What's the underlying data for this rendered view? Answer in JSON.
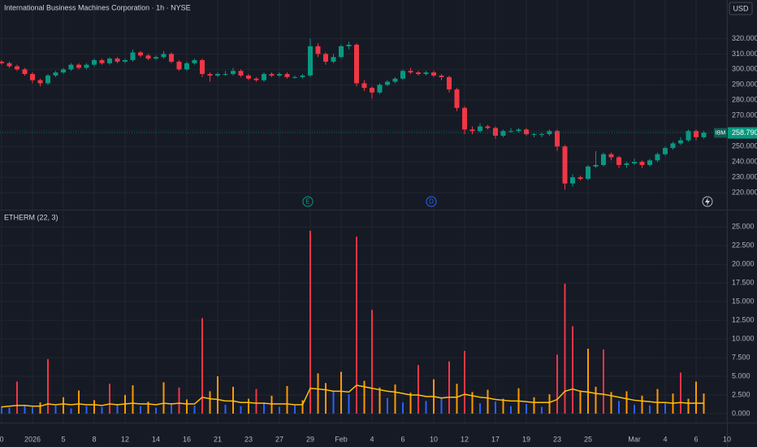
{
  "chart_data": {
    "type": "candlestick",
    "title": "International Business Machines Corporation · 1h · NYSE",
    "currency": "USD",
    "symbol_label": "IBM",
    "last_price": 258.79,
    "last_price_label": "258.790",
    "events": [
      "E",
      "D"
    ],
    "up_color": "#089981",
    "down_color": "#f23645",
    "grid": true,
    "xlim": [
      0,
      94
    ],
    "xticks": [
      {
        "value": 0,
        "label": "0"
      },
      {
        "value": 4,
        "label": "2026"
      },
      {
        "value": 8,
        "label": "5"
      },
      {
        "value": 12,
        "label": "8"
      },
      {
        "value": 16,
        "label": "12"
      },
      {
        "value": 20,
        "label": "14"
      },
      {
        "value": 24,
        "label": "16"
      },
      {
        "value": 28,
        "label": "21"
      },
      {
        "value": 32,
        "label": "23"
      },
      {
        "value": 36,
        "label": "27"
      },
      {
        "value": 40,
        "label": "29"
      },
      {
        "value": 44,
        "label": "Feb"
      },
      {
        "value": 48,
        "label": "4"
      },
      {
        "value": 52,
        "label": "6"
      },
      {
        "value": 56,
        "label": "10"
      },
      {
        "value": 60,
        "label": "12"
      },
      {
        "value": 64,
        "label": "17"
      },
      {
        "value": 68,
        "label": "19"
      },
      {
        "value": 72,
        "label": "23"
      },
      {
        "value": 76,
        "label": "25"
      },
      {
        "value": 82,
        "label": "Mar"
      },
      {
        "value": 86,
        "label": "4"
      },
      {
        "value": 90,
        "label": "6"
      },
      {
        "value": 94,
        "label": "10"
      }
    ],
    "ylim": [
      209,
      345
    ],
    "yticks": [
      {
        "value": 220,
        "label": "220.000"
      },
      {
        "value": 230,
        "label": "230.000"
      },
      {
        "value": 240,
        "label": "240.000"
      },
      {
        "value": 250,
        "label": "250.000"
      },
      {
        "value": 260,
        "label": "260.000"
      },
      {
        "value": 270,
        "label": "270.000"
      },
      {
        "value": 280,
        "label": "280.000"
      },
      {
        "value": 290,
        "label": "290.000"
      },
      {
        "value": 300,
        "label": "300.000"
      },
      {
        "value": 310,
        "label": "310.000"
      },
      {
        "value": 320,
        "label": "320.000"
      }
    ],
    "candles": [
      [
        305,
        306,
        303,
        304
      ],
      [
        304,
        305,
        301,
        302
      ],
      [
        302,
        303,
        299,
        300
      ],
      [
        300,
        301,
        296,
        297
      ],
      [
        297,
        298,
        291,
        293
      ],
      [
        293,
        294,
        289,
        291
      ],
      [
        291,
        297,
        290,
        296
      ],
      [
        296,
        299,
        295,
        298
      ],
      [
        298,
        301,
        297,
        300
      ],
      [
        300,
        304,
        299,
        303
      ],
      [
        303,
        304,
        300,
        301
      ],
      [
        301,
        304,
        300,
        303
      ],
      [
        303,
        307,
        302,
        306
      ],
      [
        306,
        307,
        303,
        304
      ],
      [
        304,
        308,
        303,
        307
      ],
      [
        307,
        308,
        304,
        305
      ],
      [
        305,
        307,
        304,
        306
      ],
      [
        306,
        313,
        305,
        311
      ],
      [
        311,
        312,
        308,
        309
      ],
      [
        309,
        310,
        306,
        307
      ],
      [
        307,
        309,
        306,
        308
      ],
      [
        308,
        312,
        307,
        310
      ],
      [
        310,
        311,
        304,
        305
      ],
      [
        305,
        306,
        299,
        300
      ],
      [
        300,
        305,
        299,
        304
      ],
      [
        304,
        307,
        303,
        306
      ],
      [
        306,
        307,
        295,
        297
      ],
      [
        297,
        298,
        292,
        296
      ],
      [
        296,
        298,
        295,
        297
      ],
      [
        297,
        299,
        296,
        297
      ],
      [
        297,
        301,
        296,
        299
      ],
      [
        299,
        300,
        295,
        296
      ],
      [
        296,
        297,
        293,
        294
      ],
      [
        294,
        295,
        292,
        293
      ],
      [
        293,
        298,
        292,
        297
      ],
      [
        297,
        298,
        295,
        296
      ],
      [
        296,
        298,
        295,
        297
      ],
      [
        297,
        298,
        294,
        295
      ],
      [
        295,
        296,
        294,
        295
      ],
      [
        295,
        297,
        294,
        296
      ],
      [
        296,
        320,
        295,
        315
      ],
      [
        315,
        317,
        308,
        310
      ],
      [
        310,
        311,
        303,
        305
      ],
      [
        305,
        310,
        304,
        308
      ],
      [
        308,
        316,
        307,
        315
      ],
      [
        315,
        318,
        313,
        316
      ],
      [
        316,
        317,
        289,
        291
      ],
      [
        291,
        293,
        286,
        288
      ],
      [
        288,
        289,
        281,
        285
      ],
      [
        285,
        291,
        284,
        290
      ],
      [
        290,
        293,
        289,
        292
      ],
      [
        292,
        295,
        291,
        294
      ],
      [
        294,
        300,
        293,
        299
      ],
      [
        299,
        301,
        297,
        298
      ],
      [
        298,
        299,
        296,
        297
      ],
      [
        297,
        299,
        296,
        298
      ],
      [
        298,
        299,
        295,
        296
      ],
      [
        296,
        297,
        293,
        295
      ],
      [
        295,
        296,
        285,
        287
      ],
      [
        287,
        288,
        273,
        275
      ],
      [
        275,
        276,
        258,
        261
      ],
      [
        261,
        263,
        258,
        260
      ],
      [
        260,
        265,
        259,
        263
      ],
      [
        263,
        264,
        261,
        262
      ],
      [
        262,
        263,
        255,
        257
      ],
      [
        257,
        261,
        256,
        260
      ],
      [
        260,
        262,
        259,
        260
      ],
      [
        260,
        262,
        259,
        261
      ],
      [
        261,
        262,
        257,
        258
      ],
      [
        258,
        259,
        256,
        258
      ],
      [
        258,
        259,
        256,
        258
      ],
      [
        258,
        261,
        257,
        260
      ],
      [
        260,
        261,
        247,
        250
      ],
      [
        250,
        251,
        222,
        226
      ],
      [
        226,
        232,
        224,
        230
      ],
      [
        230,
        231,
        228,
        229
      ],
      [
        229,
        238,
        228,
        237
      ],
      [
        237,
        247,
        236,
        238
      ],
      [
        238,
        246,
        237,
        245
      ],
      [
        245,
        246,
        241,
        243
      ],
      [
        243,
        244,
        236,
        238
      ],
      [
        238,
        240,
        236,
        239
      ],
      [
        239,
        242,
        238,
        240
      ],
      [
        240,
        241,
        236,
        238
      ],
      [
        238,
        242,
        237,
        241
      ],
      [
        241,
        246,
        240,
        245
      ],
      [
        245,
        250,
        244,
        249
      ],
      [
        249,
        253,
        248,
        252
      ],
      [
        252,
        256,
        251,
        254
      ],
      [
        254,
        261,
        253,
        260
      ],
      [
        260,
        261,
        254,
        256
      ],
      [
        256,
        260,
        255,
        259
      ]
    ],
    "indicator": {
      "title": "ETHERM (22, 3)",
      "ylim": [
        -1.2,
        27.1
      ],
      "yticks": [
        {
          "value": 0,
          "label": "0.000"
        },
        {
          "value": 2.5,
          "label": "2.500"
        },
        {
          "value": 5,
          "label": "5.000"
        },
        {
          "value": 7.5,
          "label": "7.500"
        },
        {
          "value": 10,
          "label": "10.000"
        },
        {
          "value": 12.5,
          "label": "12.500"
        },
        {
          "value": 15,
          "label": "15.000"
        },
        {
          "value": 17.5,
          "label": "17.500"
        },
        {
          "value": 20,
          "label": "20.000"
        },
        {
          "value": 22.5,
          "label": "22.500"
        },
        {
          "value": 25,
          "label": "25.000"
        }
      ],
      "values": [
        1.0,
        0.8,
        4.3,
        1.2,
        0.9,
        1.5,
        7.3,
        1.1,
        2.2,
        0.7,
        3.1,
        1.0,
        1.8,
        0.9,
        4.0,
        1.3,
        2.5,
        3.8,
        1.0,
        1.6,
        0.8,
        4.2,
        1.4,
        3.5,
        1.9,
        1.1,
        12.8,
        3.0,
        5.0,
        1.2,
        3.6,
        1.0,
        2.0,
        3.3,
        1.5,
        2.4,
        0.9,
        3.7,
        1.1,
        1.8,
        24.5,
        5.4,
        4.1,
        3.0,
        5.6,
        2.6,
        23.7,
        4.4,
        13.9,
        3.5,
        2.1,
        3.9,
        1.5,
        2.8,
        6.5,
        1.7,
        4.6,
        2.2,
        7.0,
        4.0,
        8.4,
        2.9,
        1.4,
        3.2,
        1.6,
        2.0,
        1.0,
        3.4,
        1.3,
        2.2,
        0.9,
        2.6,
        7.9,
        17.4,
        11.7,
        3.1,
        8.7,
        3.6,
        8.6,
        2.9,
        1.7,
        3.0,
        1.2,
        2.4,
        1.1,
        3.3,
        1.5,
        2.7,
        5.5,
        2.0,
        4.3,
        2.7
      ],
      "colors": [
        "#2962ff",
        "#2962ff",
        "#f23645",
        "#2962ff",
        "#2962ff",
        "#ff9800",
        "#f23645",
        "#2962ff",
        "#ff9800",
        "#2962ff",
        "#ff9800",
        "#2962ff",
        "#ff9800",
        "#2962ff",
        "#f23645",
        "#2962ff",
        "#ff9800",
        "#ff9800",
        "#2962ff",
        "#ff9800",
        "#2962ff",
        "#ff9800",
        "#2962ff",
        "#f23645",
        "#ff9800",
        "#2962ff",
        "#f23645",
        "#ff9800",
        "#ff9800",
        "#2962ff",
        "#ff9800",
        "#2962ff",
        "#ff9800",
        "#f23645",
        "#2962ff",
        "#ff9800",
        "#2962ff",
        "#ff9800",
        "#2962ff",
        "#ff9800",
        "#f23645",
        "#ff9800",
        "#ff9800",
        "#2962ff",
        "#ff9800",
        "#2962ff",
        "#f23645",
        "#ff9800",
        "#f23645",
        "#ff9800",
        "#2962ff",
        "#ff9800",
        "#2962ff",
        "#ff9800",
        "#f23645",
        "#2962ff",
        "#ff9800",
        "#2962ff",
        "#f23645",
        "#ff9800",
        "#f23645",
        "#ff9800",
        "#2962ff",
        "#ff9800",
        "#2962ff",
        "#ff9800",
        "#2962ff",
        "#ff9800",
        "#2962ff",
        "#ff9800",
        "#2962ff",
        "#ff9800",
        "#f23645",
        "#f23645",
        "#f23645",
        "#ff9800",
        "#ff9800",
        "#ff9800",
        "#f23645",
        "#ff9800",
        "#2962ff",
        "#ff9800",
        "#2962ff",
        "#ff9800",
        "#2962ff",
        "#ff9800",
        "#2962ff",
        "#ff9800",
        "#f23645",
        "#ff9800",
        "#ff9800",
        "#ff9800"
      ],
      "line_color": "#ffc107",
      "line": [
        0.9,
        1.0,
        1.1,
        1.1,
        1.0,
        1.0,
        1.3,
        1.2,
        1.3,
        1.2,
        1.3,
        1.2,
        1.2,
        1.1,
        1.3,
        1.2,
        1.3,
        1.4,
        1.3,
        1.3,
        1.2,
        1.4,
        1.3,
        1.4,
        1.3,
        1.3,
        2.2,
        2.0,
        1.9,
        1.7,
        1.7,
        1.5,
        1.5,
        1.4,
        1.4,
        1.3,
        1.3,
        1.3,
        1.2,
        1.2,
        3.4,
        3.3,
        3.2,
        3.0,
        3.0,
        2.9,
        3.8,
        3.6,
        3.4,
        3.2,
        3.0,
        2.9,
        2.7,
        2.5,
        2.5,
        2.3,
        2.3,
        2.1,
        2.2,
        2.2,
        2.6,
        2.4,
        2.2,
        2.1,
        1.9,
        1.8,
        1.7,
        1.7,
        1.6,
        1.5,
        1.5,
        1.5,
        1.9,
        3.0,
        3.3,
        3.0,
        2.9,
        2.7,
        2.6,
        2.4,
        2.2,
        2.0,
        1.8,
        1.7,
        1.6,
        1.5,
        1.5,
        1.4,
        1.5,
        1.4,
        1.4,
        1.4
      ]
    }
  }
}
